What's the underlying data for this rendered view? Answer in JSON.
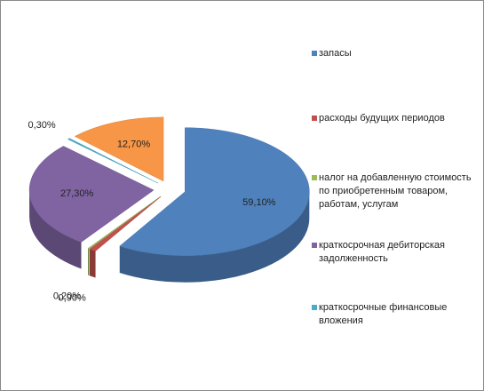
{
  "chart_data": {
    "type": "pie3d",
    "categories": [
      "запасы",
      "расходы будущих периодов",
      "налог на добавленную стоимость по приобретенным товаром, работам, услугам",
      "краткосрочная дебиторская задолженность",
      "краткосрочные финансовые вложения",
      null
    ],
    "values": [
      59.1,
      0.9,
      0.2,
      27.3,
      0.3,
      12.7
    ],
    "value_labels": [
      "59,10%",
      "0,90%",
      "0,20%",
      "27,30%",
      "0,30%",
      "12,70%"
    ],
    "colors": [
      "#4f81bd",
      "#c0504d",
      "#9bbb59",
      "#8064a2",
      "#4bacc6",
      "#f79646"
    ]
  }
}
